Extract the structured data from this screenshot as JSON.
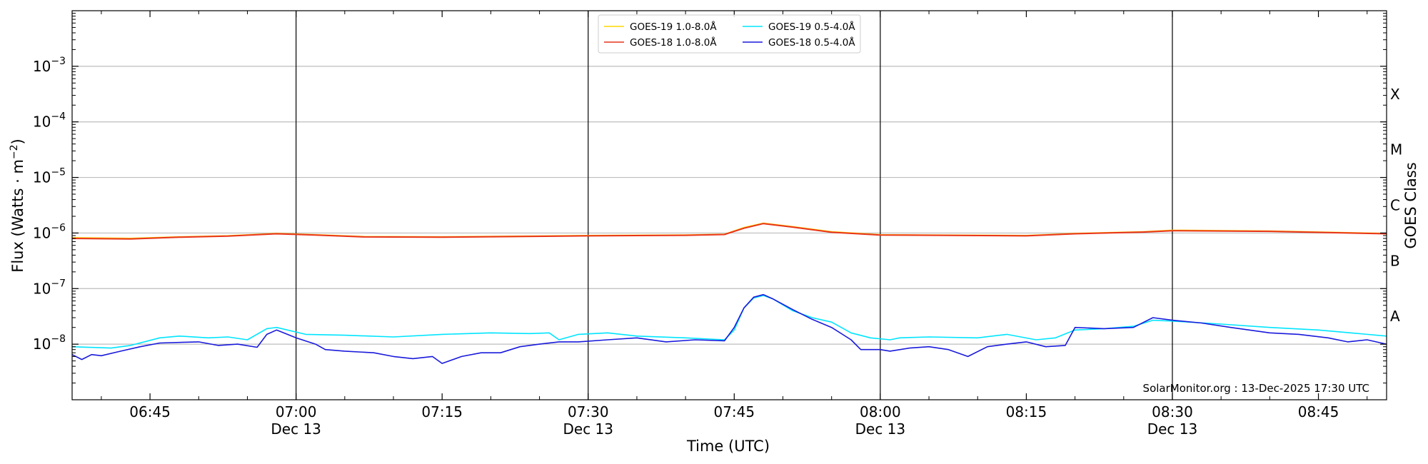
{
  "chart_data": {
    "type": "line",
    "title": "",
    "xlabel": "Time (UTC)",
    "ylabel": "Flux (Watts · m⁻²)",
    "y2label": "GOES Class",
    "yscale": "log",
    "ylim": [
      1e-09,
      0.01
    ],
    "xlim": [
      "06:37",
      "08:52"
    ],
    "grid": "horizontal at decades",
    "legend_position": "top-center",
    "credit": "SolarMonitor.org : 13-Dec-2025 17:30 UTC",
    "x_ticks": [
      {
        "time": "06:45",
        "label": "06:45",
        "sublabel": ""
      },
      {
        "time": "07:00",
        "label": "07:00",
        "sublabel": "Dec 13"
      },
      {
        "time": "07:15",
        "label": "07:15",
        "sublabel": ""
      },
      {
        "time": "07:30",
        "label": "07:30",
        "sublabel": "Dec 13"
      },
      {
        "time": "07:45",
        "label": "07:45",
        "sublabel": ""
      },
      {
        "time": "08:00",
        "label": "08:00",
        "sublabel": "Dec 13"
      },
      {
        "time": "08:15",
        "label": "08:15",
        "sublabel": ""
      },
      {
        "time": "08:30",
        "label": "08:30",
        "sublabel": "Dec 13"
      },
      {
        "time": "08:45",
        "label": "08:45",
        "sublabel": ""
      }
    ],
    "day_boundary_lines": [
      "07:00",
      "07:30",
      "08:00",
      "08:30"
    ],
    "y_ticks": [
      {
        "value": 1e-08,
        "base": "10",
        "exp": "−8"
      },
      {
        "value": 1e-07,
        "base": "10",
        "exp": "−7"
      },
      {
        "value": 1e-06,
        "base": "10",
        "exp": "−6"
      },
      {
        "value": 1e-05,
        "base": "10",
        "exp": "−5"
      },
      {
        "value": 0.0001,
        "base": "10",
        "exp": "−4"
      },
      {
        "value": 0.001,
        "base": "10",
        "exp": "−3"
      }
    ],
    "goes_classes": [
      {
        "label": "A",
        "value": 1e-08
      },
      {
        "label": "B",
        "value": 1e-07
      },
      {
        "label": "C",
        "value": 1e-06
      },
      {
        "label": "M",
        "value": 1e-05
      },
      {
        "label": "X",
        "value": 0.0001
      }
    ],
    "series": [
      {
        "name": "GOES-19 1.0-8.0Å",
        "color": "#ffd700",
        "points": [
          [
            "06:37",
            8.2e-07
          ],
          [
            "06:43",
            8e-07
          ],
          [
            "06:48",
            8.5e-07
          ],
          [
            "06:53",
            8.9e-07
          ],
          [
            "06:58",
            9.8e-07
          ],
          [
            "07:02",
            9.3e-07
          ],
          [
            "07:07",
            8.6e-07
          ],
          [
            "07:15",
            8.5e-07
          ],
          [
            "07:30",
            9e-07
          ],
          [
            "07:40",
            9.2e-07
          ],
          [
            "07:44",
            9.5e-07
          ],
          [
            "07:46",
            1.25e-06
          ],
          [
            "07:48",
            1.5e-06
          ],
          [
            "07:51",
            1.3e-06
          ],
          [
            "07:55",
            1.05e-06
          ],
          [
            "08:00",
            9.3e-07
          ],
          [
            "08:15",
            9e-07
          ],
          [
            "08:20",
            9.8e-07
          ],
          [
            "08:27",
            1.05e-06
          ],
          [
            "08:30",
            1.12e-06
          ],
          [
            "08:40",
            1.08e-06
          ],
          [
            "08:52",
            9.8e-07
          ]
        ]
      },
      {
        "name": "GOES-18 1.0-8.0Å",
        "color": "#e8341c",
        "points": [
          [
            "06:37",
            8e-07
          ],
          [
            "06:43",
            7.8e-07
          ],
          [
            "06:48",
            8.4e-07
          ],
          [
            "06:53",
            8.8e-07
          ],
          [
            "06:58",
            9.7e-07
          ],
          [
            "07:02",
            9.2e-07
          ],
          [
            "07:07",
            8.5e-07
          ],
          [
            "07:15",
            8.4e-07
          ],
          [
            "07:30",
            8.9e-07
          ],
          [
            "07:40",
            9.1e-07
          ],
          [
            "07:44",
            9.4e-07
          ],
          [
            "07:46",
            1.22e-06
          ],
          [
            "07:48",
            1.48e-06
          ],
          [
            "07:51",
            1.28e-06
          ],
          [
            "07:55",
            1.03e-06
          ],
          [
            "08:00",
            9.2e-07
          ],
          [
            "08:15",
            8.9e-07
          ],
          [
            "08:20",
            9.7e-07
          ],
          [
            "08:27",
            1.04e-06
          ],
          [
            "08:30",
            1.1e-06
          ],
          [
            "08:40",
            1.07e-06
          ],
          [
            "08:52",
            9.7e-07
          ]
        ]
      },
      {
        "name": "GOES-19 0.5-4.0Å",
        "color": "#00e5ff",
        "points": [
          [
            "06:37",
            9e-09
          ],
          [
            "06:41",
            8.5e-09
          ],
          [
            "06:43",
            9.5e-09
          ],
          [
            "06:46",
            1.3e-08
          ],
          [
            "06:48",
            1.4e-08
          ],
          [
            "06:51",
            1.3e-08
          ],
          [
            "06:53",
            1.35e-08
          ],
          [
            "06:55",
            1.2e-08
          ],
          [
            "06:57",
            1.9e-08
          ],
          [
            "06:58",
            2e-08
          ],
          [
            "07:01",
            1.5e-08
          ],
          [
            "07:05",
            1.45e-08
          ],
          [
            "07:10",
            1.35e-08
          ],
          [
            "07:15",
            1.5e-08
          ],
          [
            "07:20",
            1.6e-08
          ],
          [
            "07:24",
            1.55e-08
          ],
          [
            "07:26",
            1.6e-08
          ],
          [
            "07:27",
            1.2e-08
          ],
          [
            "07:29",
            1.5e-08
          ],
          [
            "07:32",
            1.6e-08
          ],
          [
            "07:35",
            1.4e-08
          ],
          [
            "07:40",
            1.3e-08
          ],
          [
            "07:44",
            1.2e-08
          ],
          [
            "07:45",
            1.8e-08
          ],
          [
            "07:46",
            4.5e-08
          ],
          [
            "07:47",
            6.8e-08
          ],
          [
            "07:48",
            7.5e-08
          ],
          [
            "07:49",
            6.5e-08
          ],
          [
            "07:51",
            4e-08
          ],
          [
            "07:53",
            3e-08
          ],
          [
            "07:55",
            2.5e-08
          ],
          [
            "07:57",
            1.6e-08
          ],
          [
            "07:59",
            1.3e-08
          ],
          [
            "08:01",
            1.2e-08
          ],
          [
            "08:02",
            1.3e-08
          ],
          [
            "08:05",
            1.35e-08
          ],
          [
            "08:10",
            1.3e-08
          ],
          [
            "08:13",
            1.5e-08
          ],
          [
            "08:16",
            1.2e-08
          ],
          [
            "08:18",
            1.3e-08
          ],
          [
            "08:20",
            1.8e-08
          ],
          [
            "08:23",
            1.9e-08
          ],
          [
            "08:26",
            2.1e-08
          ],
          [
            "08:28",
            2.7e-08
          ],
          [
            "08:30",
            2.6e-08
          ],
          [
            "08:35",
            2.3e-08
          ],
          [
            "08:40",
            2e-08
          ],
          [
            "08:45",
            1.8e-08
          ],
          [
            "08:52",
            1.4e-08
          ]
        ]
      },
      {
        "name": "GOES-18 0.5-4.0Å",
        "color": "#1a1adc",
        "points": [
          [
            "06:37",
            6.5e-09
          ],
          [
            "06:38",
            5.3e-09
          ],
          [
            "06:39",
            6.5e-09
          ],
          [
            "06:40",
            6.2e-09
          ],
          [
            "06:42",
            7.5e-09
          ],
          [
            "06:44",
            9e-09
          ],
          [
            "06:46",
            1.05e-08
          ],
          [
            "06:50",
            1.1e-08
          ],
          [
            "06:52",
            9.5e-09
          ],
          [
            "06:54",
            1e-08
          ],
          [
            "06:56",
            8.8e-09
          ],
          [
            "06:57",
            1.5e-08
          ],
          [
            "06:58",
            1.8e-08
          ],
          [
            "07:00",
            1.3e-08
          ],
          [
            "07:02",
            1e-08
          ],
          [
            "07:03",
            8e-09
          ],
          [
            "07:05",
            7.5e-09
          ],
          [
            "07:08",
            7e-09
          ],
          [
            "07:10",
            6e-09
          ],
          [
            "07:12",
            5.5e-09
          ],
          [
            "07:14",
            6e-09
          ],
          [
            "07:15",
            4.5e-09
          ],
          [
            "07:17",
            6e-09
          ],
          [
            "07:19",
            7e-09
          ],
          [
            "07:21",
            7e-09
          ],
          [
            "07:23",
            9e-09
          ],
          [
            "07:25",
            1e-08
          ],
          [
            "07:27",
            1.1e-08
          ],
          [
            "07:29",
            1.1e-08
          ],
          [
            "07:32",
            1.2e-08
          ],
          [
            "07:35",
            1.3e-08
          ],
          [
            "07:38",
            1.1e-08
          ],
          [
            "07:41",
            1.2e-08
          ],
          [
            "07:44",
            1.15e-08
          ],
          [
            "07:45",
            2e-08
          ],
          [
            "07:46",
            4.5e-08
          ],
          [
            "07:47",
            7e-08
          ],
          [
            "07:48",
            7.8e-08
          ],
          [
            "07:49",
            6.5e-08
          ],
          [
            "07:51",
            4.2e-08
          ],
          [
            "07:53",
            2.8e-08
          ],
          [
            "07:55",
            2e-08
          ],
          [
            "07:57",
            1.2e-08
          ],
          [
            "07:58",
            8e-09
          ],
          [
            "08:00",
            8e-09
          ],
          [
            "08:01",
            7.5e-09
          ],
          [
            "08:03",
            8.5e-09
          ],
          [
            "08:05",
            9e-09
          ],
          [
            "08:07",
            8e-09
          ],
          [
            "08:09",
            6e-09
          ],
          [
            "08:11",
            9e-09
          ],
          [
            "08:13",
            1e-08
          ],
          [
            "08:15",
            1.1e-08
          ],
          [
            "08:17",
            9e-09
          ],
          [
            "08:19",
            9.5e-09
          ],
          [
            "08:20",
            2e-08
          ],
          [
            "08:23",
            1.9e-08
          ],
          [
            "08:26",
            2e-08
          ],
          [
            "08:28",
            3e-08
          ],
          [
            "08:30",
            2.7e-08
          ],
          [
            "08:33",
            2.4e-08
          ],
          [
            "08:36",
            2e-08
          ],
          [
            "08:40",
            1.6e-08
          ],
          [
            "08:43",
            1.5e-08
          ],
          [
            "08:46",
            1.3e-08
          ],
          [
            "08:48",
            1.1e-08
          ],
          [
            "08:50",
            1.2e-08
          ],
          [
            "08:52",
            1e-08
          ]
        ]
      }
    ]
  }
}
